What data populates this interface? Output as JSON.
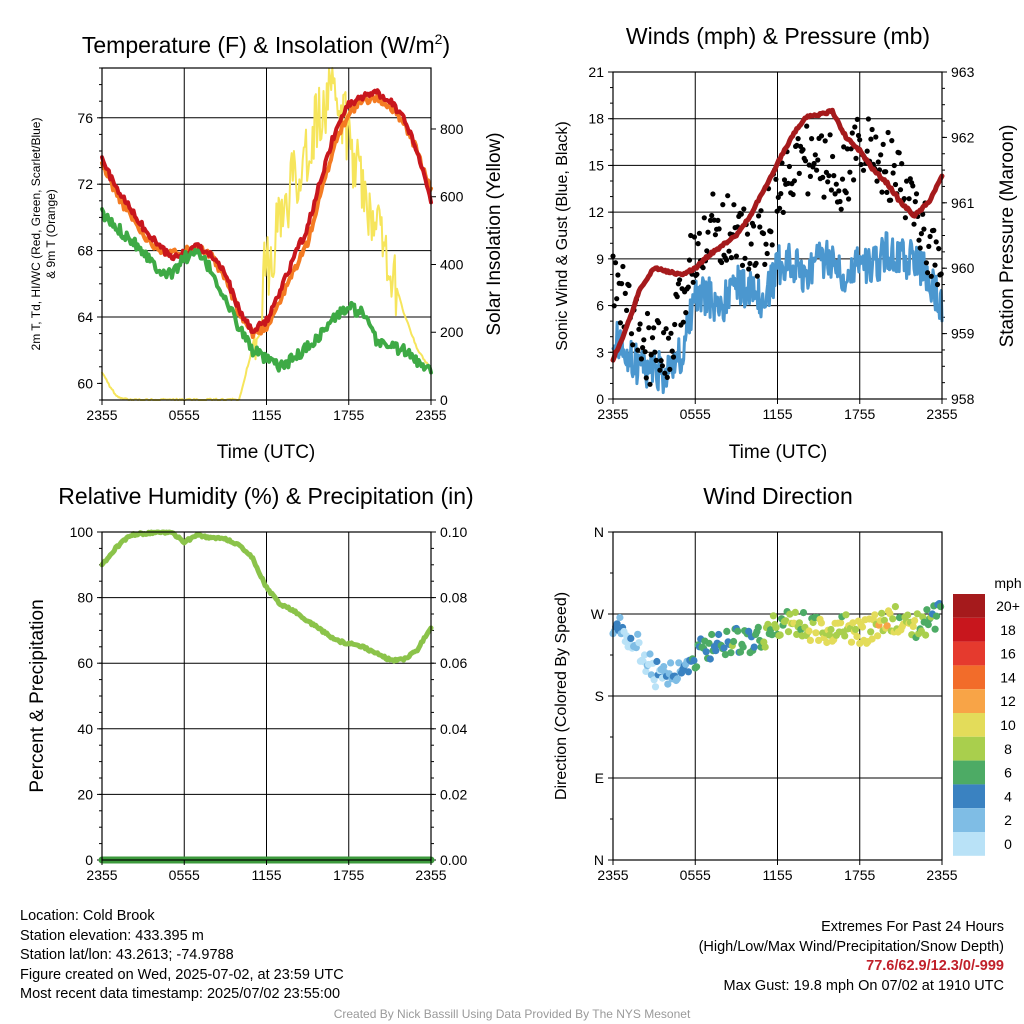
{
  "colors": {
    "red": "#c8161d",
    "orange": "#f47b22",
    "green": "#3eaa45",
    "yellow": "#f6e55c",
    "wind": "#4b97cf",
    "gust": "#000000",
    "pressure": "#a51a1c",
    "rh": "#8bc34a",
    "precip": "#3d9a3d"
  },
  "x_ticks": [
    "2355",
    "0555",
    "1155",
    "1755",
    "2355"
  ],
  "chart_data": [
    {
      "type": "line",
      "title": "Temperature (F) & Insolation (W/m²)",
      "xlabel": "Time (UTC)",
      "ylabel": "2m T, Td, HI/WC (Red, Green, Scarlet/Blue) & 9m T (Orange)",
      "y2label": "Solar Insolation (Yellow)",
      "ylim": [
        59,
        79
      ],
      "y2lim": [
        0,
        980
      ],
      "yticks": [
        "60",
        "64",
        "68",
        "72",
        "76"
      ],
      "y2ticks": [
        "0",
        "200",
        "400",
        "600",
        "800"
      ],
      "x_hours": [
        0,
        1,
        2,
        3,
        4,
        5,
        6,
        7,
        8,
        9,
        10,
        11,
        12,
        13,
        14,
        15,
        16,
        17,
        18,
        19,
        20,
        21,
        22,
        23,
        24
      ],
      "series": [
        {
          "name": "2m T",
          "axis": "left",
          "values": [
            73.5,
            71.8,
            70.6,
            69.4,
            68.4,
            67.6,
            67.8,
            68.3,
            67.8,
            66.6,
            64.4,
            63.1,
            63.8,
            65.5,
            67.6,
            69.4,
            72.4,
            75.2,
            76.8,
            77.3,
            77.5,
            77.1,
            76.0,
            74.0,
            71.0
          ]
        },
        {
          "name": "9m T",
          "axis": "left",
          "values": [
            73.2,
            71.5,
            70.2,
            69.0,
            68.2,
            67.8,
            68.0,
            68.2,
            67.6,
            66.3,
            64.2,
            63.0,
            63.4,
            65.0,
            66.8,
            68.5,
            71.5,
            74.5,
            76.3,
            77.0,
            77.2,
            76.7,
            75.8,
            74.0,
            71.5
          ]
        },
        {
          "name": "Td",
          "axis": "left",
          "values": [
            70.2,
            69.4,
            68.8,
            68.0,
            67.0,
            66.5,
            67.6,
            67.8,
            66.8,
            65.0,
            63.4,
            62.0,
            61.4,
            61.0,
            61.5,
            62.2,
            63.0,
            64.0,
            64.6,
            64.2,
            62.6,
            62.3,
            62.0,
            61.3,
            61.0
          ]
        },
        {
          "name": "Solar Insolation",
          "axis": "right",
          "values": [
            80,
            12,
            0,
            0,
            0,
            0,
            0,
            0,
            0,
            0,
            0,
            160,
            400,
            520,
            640,
            760,
            840,
            900,
            780,
            640,
            520,
            400,
            260,
            150,
            90
          ]
        }
      ]
    },
    {
      "type": "line",
      "title": "Winds (mph) & Pressure (mb)",
      "xlabel": "Time (UTC)",
      "ylabel": "Sonic Wind & Gust (Blue, Black)",
      "y2label": "Station Pressure (Maroon)",
      "ylim": [
        0,
        21
      ],
      "y2lim": [
        958,
        963
      ],
      "yticks": [
        "0",
        "3",
        "6",
        "9",
        "12",
        "15",
        "18",
        "21"
      ],
      "y2ticks": [
        "958",
        "959",
        "960",
        "961",
        "962",
        "963"
      ],
      "x_hours": [
        0,
        1,
        2,
        3,
        4,
        5,
        6,
        7,
        8,
        9,
        10,
        11,
        12,
        13,
        14,
        15,
        16,
        17,
        18,
        19,
        20,
        21,
        22,
        23,
        24
      ],
      "series": [
        {
          "name": "Sonic Wind",
          "axis": "left",
          "values": [
            4.0,
            3.0,
            2.0,
            2.0,
            1.5,
            3.0,
            6.5,
            6.5,
            6.0,
            7.5,
            7.0,
            6.0,
            8.5,
            9.0,
            8.0,
            9.0,
            9.0,
            8.0,
            9.0,
            8.5,
            9.5,
            9.0,
            9.0,
            8.0,
            6.0
          ]
        },
        {
          "name": "Gust",
          "axis": "left",
          "values": [
            7.5,
            6.0,
            3.5,
            3.0,
            2.5,
            6.0,
            10.0,
            11.0,
            11.0,
            11.0,
            9.5,
            10.5,
            13.0,
            15.0,
            15.5,
            15.0,
            15.0,
            14.0,
            17.0,
            15.5,
            15.0,
            13.5,
            12.0,
            10.0,
            7.0
          ]
        },
        {
          "name": "Station Pressure",
          "axis": "right",
          "values": [
            958.6,
            959.1,
            959.7,
            960.0,
            959.95,
            959.9,
            960.0,
            960.2,
            960.35,
            960.5,
            960.8,
            961.2,
            961.6,
            962.0,
            962.3,
            962.35,
            962.4,
            962.0,
            961.8,
            961.5,
            961.3,
            961.0,
            960.8,
            961.0,
            961.4
          ]
        }
      ]
    },
    {
      "type": "line",
      "title": "Relative Humidity (%) & Precipitation (in)",
      "ylabel": "Percent & Precipitation",
      "ylim": [
        0,
        100
      ],
      "y2lim": [
        0,
        0.1
      ],
      "yticks": [
        "0",
        "20",
        "40",
        "60",
        "80",
        "100"
      ],
      "y2ticks": [
        "0.00",
        "0.02",
        "0.04",
        "0.06",
        "0.08",
        "0.10"
      ],
      "x_hours": [
        0,
        1,
        2,
        3,
        4,
        5,
        6,
        7,
        8,
        9,
        10,
        11,
        12,
        13,
        14,
        15,
        16,
        17,
        18,
        19,
        20,
        21,
        22,
        23,
        24
      ],
      "series": [
        {
          "name": "Relative Humidity",
          "axis": "left",
          "values": [
            90,
            95,
            99,
            99.5,
            100,
            100,
            97,
            99,
            98,
            98,
            96,
            92,
            83,
            78,
            76,
            73,
            70,
            67,
            66,
            65,
            63,
            61,
            61,
            64,
            71
          ]
        },
        {
          "name": "Precipitation",
          "axis": "right",
          "values": [
            0,
            0,
            0,
            0,
            0,
            0,
            0,
            0,
            0,
            0,
            0,
            0,
            0,
            0,
            0,
            0,
            0,
            0,
            0,
            0,
            0,
            0,
            0,
            0,
            0
          ]
        }
      ]
    },
    {
      "type": "scatter",
      "title": "Wind Direction",
      "ylabel": "Direction (Colored By Speed)",
      "ylim": [
        0,
        360
      ],
      "yticks": [
        "N",
        "E",
        "S",
        "W",
        "N"
      ],
      "x_hours": [
        0,
        1,
        2,
        3,
        4,
        5,
        6,
        7,
        8,
        9,
        10,
        11,
        12,
        13,
        14,
        15,
        16,
        17,
        18,
        19,
        20,
        21,
        22,
        23,
        24
      ],
      "series": [
        {
          "name": "Direction",
          "values": [
            260,
            245,
            232,
            205,
            200,
            210,
            225,
            235,
            238,
            240,
            240,
            245,
            258,
            262,
            258,
            252,
            248,
            255,
            250,
            255,
            262,
            265,
            258,
            262,
            270
          ]
        },
        {
          "name": "Speed",
          "values": [
            3,
            2,
            1,
            1,
            2,
            3,
            5,
            5,
            5,
            6,
            5,
            6,
            7,
            8,
            8,
            8,
            9,
            8,
            10,
            9,
            10,
            8,
            8,
            7,
            4
          ]
        }
      ],
      "legend": {
        "title": "mph",
        "labels": [
          "20+",
          "18",
          "16",
          "14",
          "12",
          "10",
          "8",
          "6",
          "4",
          "2",
          "0"
        ],
        "colors": [
          "#a51a1c",
          "#c8161d",
          "#e53a2e",
          "#f26c2a",
          "#f8a447",
          "#e3dc5a",
          "#a9cf4d",
          "#4dab65",
          "#3a82c1",
          "#7fbde5",
          "#b9e2f7"
        ]
      }
    }
  ],
  "info_left": {
    "location": "Location: Cold Brook",
    "elevation": "Station elevation: 433.395 m",
    "latlon": "Station lat/lon: 43.2613; -74.9788",
    "created": "Figure created on Wed, 2025-07-02, at 23:59 UTC",
    "recent": "Most recent data timestamp: 2025/07/02 23:55:00"
  },
  "info_right": {
    "title": "Extremes For Past 24 Hours",
    "subtitle": "(High/Low/Max Wind/Precipitation/Snow Depth)",
    "values": "77.6/62.9/12.3/0/-999",
    "gust": "Max Gust: 19.8 mph On 07/02 at 1910 UTC"
  },
  "credit": "Created By Nick Bassill Using Data Provided By The NYS Mesonet"
}
